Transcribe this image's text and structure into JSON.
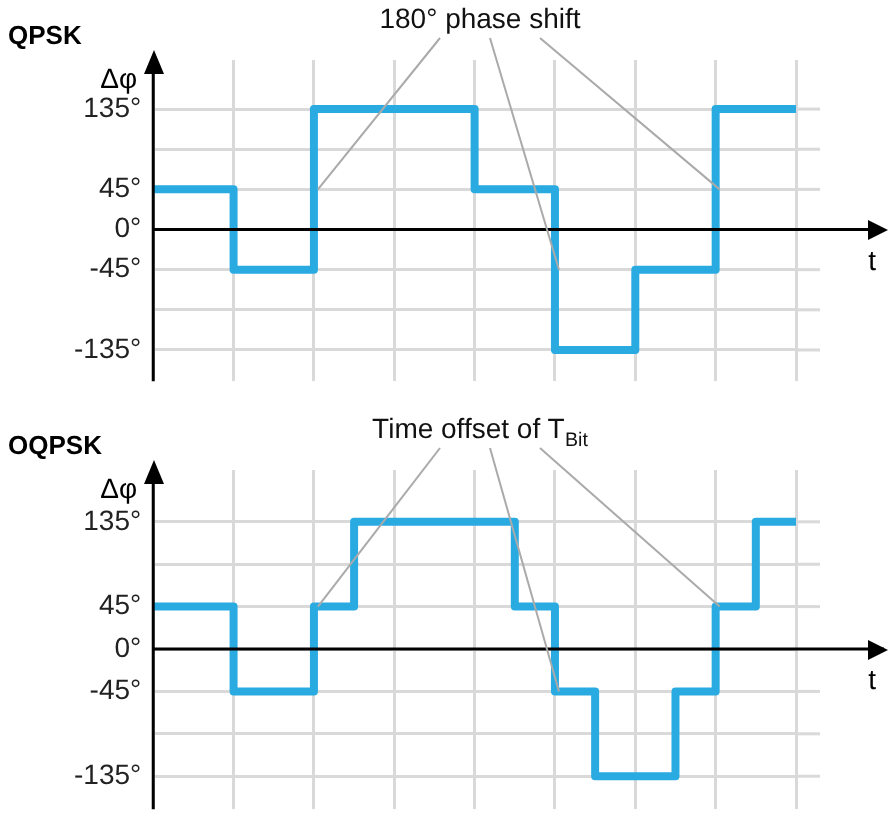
{
  "chart_data": [
    {
      "type": "step",
      "title": "QPSK",
      "annotations": [
        "180° phase shift"
      ],
      "xlabel": "t",
      "ylabel": "Δφ",
      "categories": [
        null,
        null,
        null,
        null,
        null,
        null,
        null,
        null,
        null,
        null,
        null,
        null,
        null,
        null,
        null,
        null,
        null
      ],
      "series": [
        {
          "color": "#29abe2",
          "values": [
            45,
            45,
            -45,
            -45,
            135,
            135,
            135,
            135,
            45,
            45,
            -135,
            -135,
            -45,
            -45,
            135,
            135,
            135
          ]
        }
      ],
      "ylim": [
        -170,
        190
      ],
      "yticks": [
        {
          "value": -135,
          "label": "-135°"
        },
        {
          "value": -90,
          "label": null
        },
        {
          "value": -45,
          "label": "-45°"
        },
        {
          "value": 0,
          "label": "0°"
        },
        {
          "value": 45,
          "label": "45°"
        },
        {
          "value": 90,
          "label": null
        },
        {
          "value": 135,
          "label": "135°"
        }
      ],
      "grid": true,
      "tick_labels": "y",
      "legend": false,
      "marker": "none",
      "line_style": "solid"
    },
    {
      "type": "step",
      "title": "OQPSK",
      "annotations": [
        "Time offset of T$_{Bit}$"
      ],
      "xlabel": "t",
      "ylabel": "Δφ",
      "categories": [
        null,
        null,
        null,
        null,
        null,
        null,
        null,
        null,
        null,
        null,
        null,
        null,
        null,
        null,
        null,
        null,
        null
      ],
      "series": [
        {
          "color": "#29abe2",
          "values": [
            45,
            45,
            -45,
            -45,
            45,
            135,
            135,
            135,
            135,
            45,
            -45,
            -135,
            -135,
            -45,
            45,
            135,
            135
          ]
        }
      ],
      "ylim": [
        -170,
        190
      ],
      "yticks": [
        {
          "value": -135,
          "label": "-135°"
        },
        {
          "value": -90,
          "label": null
        },
        {
          "value": -45,
          "label": "-45°"
        },
        {
          "value": 0,
          "label": "0°"
        },
        {
          "value": 45,
          "label": "45°"
        },
        {
          "value": 90,
          "label": null
        },
        {
          "value": 135,
          "label": "135°"
        }
      ],
      "grid": true,
      "tick_labels": "y",
      "legend": false,
      "marker": "none",
      "line_style": "solid"
    }
  ]
}
